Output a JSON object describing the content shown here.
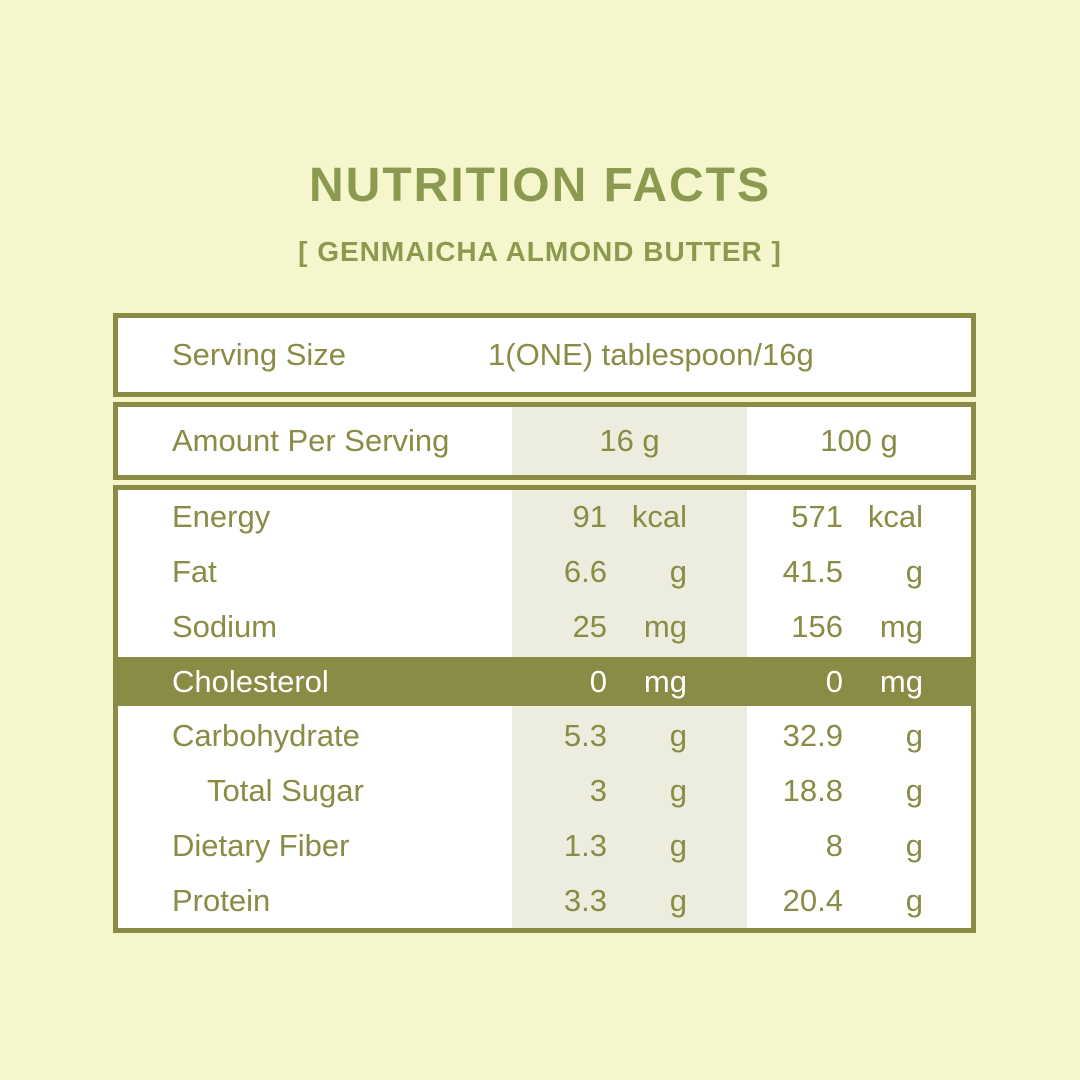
{
  "colors": {
    "accent_olive": "#8A8B45",
    "heading_olive": "#8C9A50",
    "background": "#F6F6CC",
    "column_shade": "#EDEDDF",
    "highlight_text": "#FFFFFF"
  },
  "header": {
    "title": "NUTRITION FACTS",
    "subtitle": "[ GENMAICHA ALMOND BUTTER ]"
  },
  "serving": {
    "label": "Serving Size",
    "value": "1(ONE) tablespoon/16g"
  },
  "columns": {
    "label": "Amount Per Serving",
    "per_serving": "16 g",
    "per_hundred": "100 g"
  },
  "table": {
    "rows": [
      {
        "label": "Energy",
        "v16": "91",
        "u16": "kcal",
        "v100": "571",
        "u100": "kcal"
      },
      {
        "label": "Fat",
        "v16": "6.6",
        "u16": "g",
        "v100": "41.5",
        "u100": "g"
      },
      {
        "label": "Sodium",
        "v16": "25",
        "u16": "mg",
        "v100": "156",
        "u100": "mg"
      },
      {
        "label": "Cholesterol",
        "v16": "0",
        "u16": "mg",
        "v100": "0",
        "u100": "mg"
      },
      {
        "label": "Carbohydrate",
        "v16": "5.3",
        "u16": "g",
        "v100": "32.9",
        "u100": "g"
      },
      {
        "label": "Total Sugar",
        "v16": "3",
        "u16": "g",
        "v100": "18.8",
        "u100": "g"
      },
      {
        "label": "Dietary Fiber",
        "v16": "1.3",
        "u16": "g",
        "v100": "8",
        "u100": "g"
      },
      {
        "label": "Protein",
        "v16": "3.3",
        "u16": "g",
        "v100": "20.4",
        "u100": "g"
      }
    ]
  }
}
